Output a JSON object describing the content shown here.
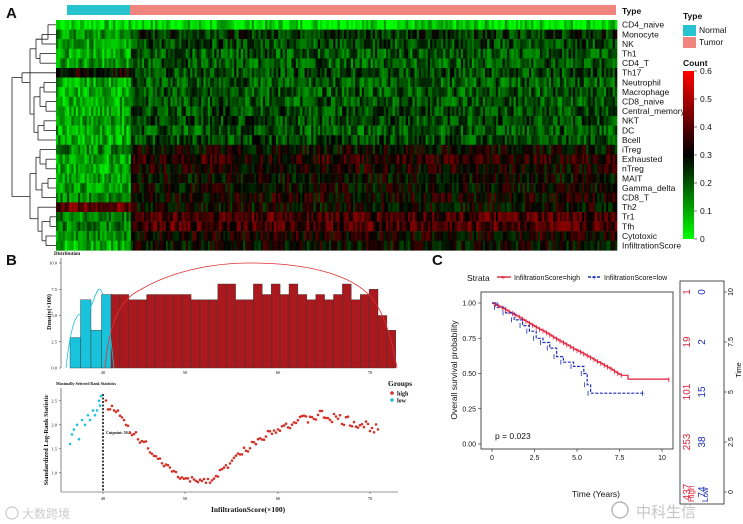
{
  "colors": {
    "normal": "#27C4D0",
    "tumor": "#F0857E",
    "high": "#E21E3A",
    "low": "#1C2DB8",
    "dist_high": "#A9191E",
    "dist_low": "#1AC3DC"
  },
  "panelA": {
    "letter": "A",
    "type_label": "Type",
    "legend_type_title": "Type",
    "legend_type_items": [
      "Normal",
      "Tumor"
    ],
    "legend_count_title": "Count",
    "legend_count_ticks": [
      "0.6",
      "0.5",
      "0.4",
      "0.3",
      "0.2",
      "0.1",
      "0"
    ],
    "rows": [
      "CD4_naive",
      "Monocyte",
      "NK",
      "Th1",
      "CD4_T",
      "Th17",
      "Neutrophil",
      "Macrophage",
      "CD8_naive",
      "Central_memory",
      "NKT",
      "DC",
      "Bcell",
      "iTreg",
      "Exhausted",
      "nTreg",
      "MAIT",
      "Gamma_delta",
      "CD8_T",
      "Th2",
      "Tr1",
      "Tfh",
      "Cytotoxic",
      "InfiltrationScore"
    ]
  },
  "panelB": {
    "letter": "B",
    "dist_title": "Distribution",
    "dist_ylabel": "Density(×100)",
    "dist_yticks": [
      "0.0",
      "2.5",
      "5.0",
      "7.5",
      "10.0"
    ],
    "dist_xticks": [
      "40",
      "50",
      "60",
      "70"
    ],
    "low_bars": [
      2.9,
      6.5,
      3.6,
      7.0
    ],
    "high_bars": [
      7.0,
      7.0,
      6.5,
      6.5,
      7.0,
      7.0,
      7.0,
      7.0,
      7.0,
      6.5,
      6.5,
      6.5,
      8.0,
      8.0,
      6.5,
      6.5,
      8.0,
      7.0,
      8.0,
      7.0,
      8.0,
      7.0,
      6.5,
      7.0,
      6.5,
      7.0,
      8.0,
      6.5,
      7.0,
      7.5,
      5.0,
      3.6
    ],
    "ms_title": "Maximally Selected Rank Statistics",
    "ms_ylabel": "Standardized Log-Rank Statistic",
    "ms_xlabel": "InfiltrationScore(×100)",
    "ms_yticks": [
      "1.0",
      "1.5",
      "2.0",
      "2.5"
    ],
    "ms_xticks": [
      "50",
      "60",
      "70"
    ],
    "cutpoint_label": "Cutpoint: 50.3",
    "groups_title": "Groups",
    "groups": [
      "high",
      "low"
    ]
  },
  "panelC": {
    "letter": "C",
    "strata_label": "Strata",
    "legend_high": "InfiltrationScore=high",
    "legend_low": "InfiltrationScore=low",
    "ylabel": "Overall survival probability",
    "yticks": [
      "0.00",
      "0.25",
      "0.50",
      "0.75",
      "1.00"
    ],
    "xticks": [
      "0",
      "2.5",
      "5.0",
      "7.5",
      "10"
    ],
    "xlabel": "Time (Years)",
    "pvalue": "p = 0.023",
    "risk_time_label": "Time",
    "risk_time_ticks": [
      "0",
      "2.5",
      "5",
      "7.5",
      "10"
    ],
    "risk_high": [
      "437",
      "253",
      "101",
      "19",
      "1"
    ],
    "risk_low": [
      "74",
      "38",
      "15",
      "2",
      "0"
    ],
    "risk_row_high": "High",
    "risk_row_low": "Low"
  },
  "watermarks": {
    "left": "大数跨境",
    "right": "中科生信"
  }
}
